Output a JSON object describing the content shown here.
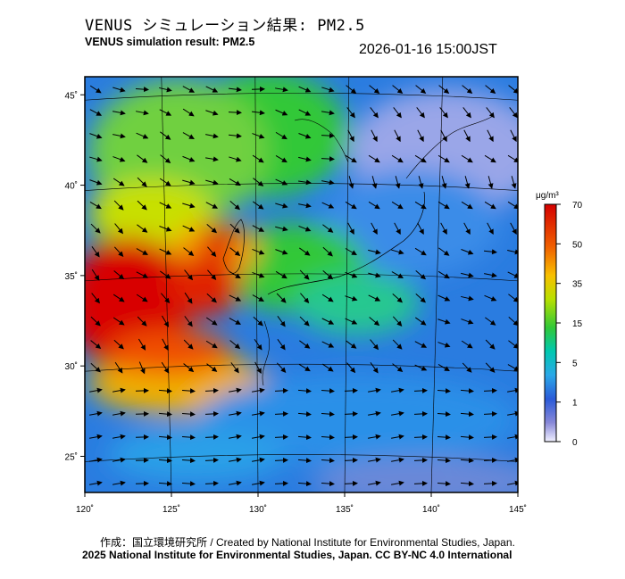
{
  "header": {
    "title_jp": "VENUS シミュレーション結果: PM2.5",
    "title_en": "VENUS simulation result: PM2.5",
    "timestamp": "2026-01-16 15:00JST"
  },
  "map": {
    "lon_ticks": [
      "120˚",
      "125˚",
      "130˚",
      "135˚",
      "140˚",
      "145˚"
    ],
    "lat_ticks": [
      "45˚",
      "40˚",
      "35˚",
      "30˚",
      "25˚"
    ],
    "lon_range": [
      120,
      145
    ],
    "lat_range": [
      23,
      46
    ]
  },
  "colorbar": {
    "unit_label": "μg/m³",
    "ticks": [
      "70",
      "50",
      "35",
      "15",
      "5",
      "1",
      "0"
    ],
    "colors": [
      "#d40000",
      "#f06000",
      "#f8c000",
      "#b8e000",
      "#30c838",
      "#00c8b0",
      "#2aa8e8",
      "#2a5ad8",
      "#8888d8",
      "#f0f0ff"
    ]
  },
  "footer": {
    "credit_jp_en": "作成：国立環境研究所 / Created by National Institute for Environmental Studies, Japan.",
    "copyright": "2025 National Institute for Environmental Studies, Japan. CC BY-NC 4.0 International"
  }
}
